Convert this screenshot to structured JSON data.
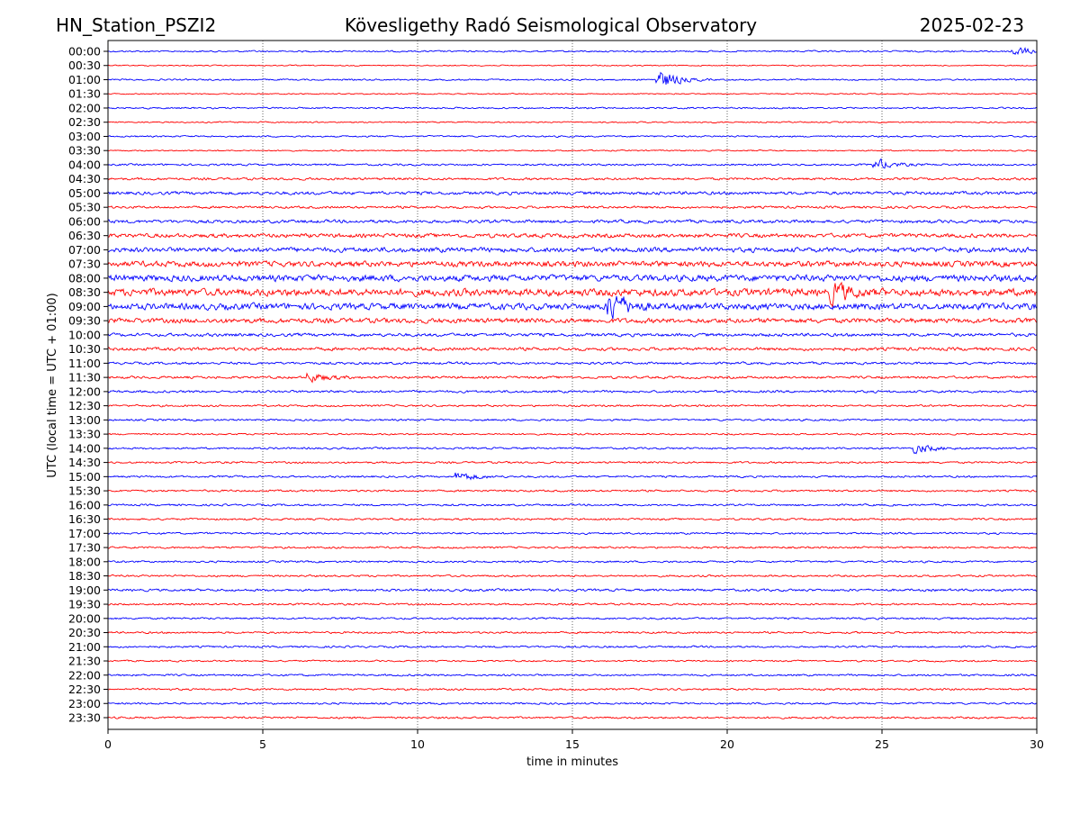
{
  "header": {
    "station": "HN_Station_PSZI2",
    "observatory": "Kövesligethy Radó Seismological Observatory",
    "date": "2025-02-23"
  },
  "chart_data": {
    "type": "line",
    "subtype": "helicorder",
    "xlabel": "time in minutes",
    "ylabel": "UTC (local time = UTC + 01:00)",
    "xlim": [
      0,
      30
    ],
    "x_ticks": [
      "0",
      "5",
      "10",
      "15",
      "20",
      "25",
      "30"
    ],
    "grid": "vertical dotted lines at x ticks",
    "colors": [
      "#0000ff",
      "#ff0000"
    ],
    "rows": [
      "00:00",
      "00:30",
      "01:00",
      "01:30",
      "02:00",
      "02:30",
      "03:00",
      "03:30",
      "04:00",
      "04:30",
      "05:00",
      "05:30",
      "06:00",
      "06:30",
      "07:00",
      "07:30",
      "08:00",
      "08:30",
      "09:00",
      "09:30",
      "10:00",
      "10:30",
      "11:00",
      "11:30",
      "12:00",
      "12:30",
      "13:00",
      "13:30",
      "14:00",
      "14:30",
      "15:00",
      "15:30",
      "16:00",
      "16:30",
      "17:00",
      "17:30",
      "18:00",
      "18:30",
      "19:00",
      "19:30",
      "20:00",
      "20:30",
      "21:00",
      "21:30",
      "22:00",
      "22:30",
      "23:00",
      "23:30"
    ],
    "relative_noise_level": [
      1,
      0.7,
      1,
      0.7,
      1,
      0.8,
      1,
      0.8,
      1.2,
      1.5,
      2,
      1.5,
      2,
      2.5,
      3,
      3.5,
      4,
      4.5,
      4,
      3,
      2,
      2,
      1.5,
      1.5,
      1.5,
      1.2,
      1.2,
      1,
      1.2,
      1.2,
      1.2,
      1.2,
      1.2,
      1.2,
      1.2,
      1.2,
      1.2,
      1.2,
      1.5,
      1.2,
      1.2,
      1.2,
      1.2,
      1,
      1.2,
      1.2,
      1.2,
      1.2
    ],
    "events": [
      {
        "row": "00:00",
        "minute": 29.4,
        "relative_amplitude": 3
      },
      {
        "row": "01:00",
        "minute": 18.0,
        "relative_amplitude": 6
      },
      {
        "row": "04:00",
        "minute": 25.0,
        "relative_amplitude": 3
      },
      {
        "row": "08:30",
        "minute": 23.6,
        "relative_amplitude": 6
      },
      {
        "row": "09:00",
        "minute": 16.4,
        "relative_amplitude": 9
      },
      {
        "row": "11:30",
        "minute": 6.7,
        "relative_amplitude": 3
      },
      {
        "row": "14:00",
        "minute": 26.3,
        "relative_amplitude": 3
      },
      {
        "row": "15:00",
        "minute": 11.5,
        "relative_amplitude": 3
      }
    ]
  }
}
